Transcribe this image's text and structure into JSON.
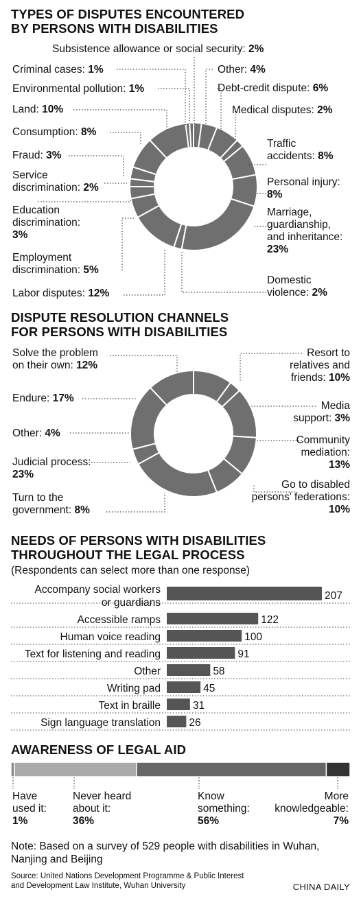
{
  "sec1": {
    "title1": "TYPES OF DISPUTES ENCOUNTERED",
    "title2": "BY PERSONS WITH DISABILITIES"
  },
  "sec2": {
    "title1": "DISPUTE RESOLUTION CHANNELS",
    "title2": "FOR PERSONS WITH DISABILITIES"
  },
  "sec3": {
    "title1": "NEEDS OF PERSONS WITH DISABILITIES",
    "title2": "THROUGHOUT THE LEGAL PROCESS",
    "subtitle": "(Respondents can select more than one response)"
  },
  "sec4": {
    "title": "AWARENESS OF LEGAL AID"
  },
  "note": "Note: Based on a survey of 529 people with disabilities in Wuhan, Nanjing and Beijing",
  "source1": "Source: United Nations Development Programme & Public Interest",
  "source2": "and Development Law Institute, Wuhan University",
  "credit": "CHINA DAILY",
  "colors": {
    "donut": "#6f6f6f",
    "bar": "#555555",
    "a1": "#888888",
    "a2": "#aaaaaa",
    "a3": "#666666",
    "a4": "#333333"
  },
  "chart_data": [
    {
      "type": "pie",
      "title": "TYPES OF DISPUTES ENCOUNTERED BY PERSONS WITH DISABILITIES",
      "slices": [
        {
          "label": "Subsistence allowance or social security",
          "value": 2,
          "text": "2%"
        },
        {
          "label": "Other",
          "value": 4,
          "text": "4%"
        },
        {
          "label": "Debt-credit dispute",
          "value": 6,
          "text": "6%"
        },
        {
          "label": "Medical disputes",
          "value": 2,
          "text": "2%"
        },
        {
          "label": "Traffic accidents",
          "value": 8,
          "text": "8%"
        },
        {
          "label": "Personal injury",
          "value": 8,
          "text": "8%"
        },
        {
          "label": "Marriage, guardianship, and inheritance",
          "value": 23,
          "text": "23%"
        },
        {
          "label": "Domestic violence",
          "value": 2,
          "text": "2%"
        },
        {
          "label": "Labor disputes",
          "value": 12,
          "text": "12%"
        },
        {
          "label": "Employment discrimination",
          "value": 5,
          "text": "5%"
        },
        {
          "label": "Education discrimination",
          "value": 3,
          "text": "3%"
        },
        {
          "label": "Service discrimination",
          "value": 2,
          "text": "2%"
        },
        {
          "label": "Fraud",
          "value": 3,
          "text": "3%"
        },
        {
          "label": "Consumption",
          "value": 8,
          "text": "8%"
        },
        {
          "label": "Land",
          "value": 10,
          "text": "10%"
        },
        {
          "label": "Environmental pollution",
          "value": 1,
          "text": "1%"
        },
        {
          "label": "Criminal cases",
          "value": 1,
          "text": "1%"
        }
      ]
    },
    {
      "type": "pie",
      "title": "DISPUTE RESOLUTION CHANNELS FOR PERSONS WITH DISABILITIES",
      "slices": [
        {
          "label": "Resort to relatives and friends",
          "value": 10,
          "text": "10%"
        },
        {
          "label": "Media support",
          "value": 3,
          "text": "3%"
        },
        {
          "label": "Community mediation",
          "value": 13,
          "text": "13%"
        },
        {
          "label": "Go to disabled persons' federations",
          "value": 10,
          "text": "10%"
        },
        {
          "label": "Turn to the government",
          "value": 8,
          "text": "8%"
        },
        {
          "label": "Judicial process",
          "value": 23,
          "text": "23%"
        },
        {
          "label": "Other",
          "value": 4,
          "text": "4%"
        },
        {
          "label": "Endure",
          "value": 17,
          "text": "17%"
        },
        {
          "label": "Solve the problem on their own",
          "value": 12,
          "text": "12%"
        }
      ]
    },
    {
      "type": "bar",
      "orientation": "horizontal",
      "title": "NEEDS OF PERSONS WITH DISABILITIES THROUGHOUT THE LEGAL PROCESS",
      "categories": [
        "Accompany social workers or guardians",
        "Accessible ramps",
        "Human voice reading",
        "Text for listening and reading",
        "Other",
        "Writing pad",
        "Text in braille",
        "Sign language translation"
      ],
      "values": [
        207,
        122,
        100,
        91,
        58,
        45,
        31,
        26
      ]
    },
    {
      "type": "bar",
      "orientation": "stacked-100",
      "title": "AWARENESS OF LEGAL AID",
      "segments": [
        {
          "label": "Have used it:",
          "value": 1,
          "text": "1%"
        },
        {
          "label": "Never heard about it:",
          "value": 36,
          "text": "36%"
        },
        {
          "label": "Know something:",
          "value": 56,
          "text": "56%"
        },
        {
          "label": "More knowledgeable:",
          "value": 7,
          "text": "7%"
        }
      ]
    }
  ]
}
